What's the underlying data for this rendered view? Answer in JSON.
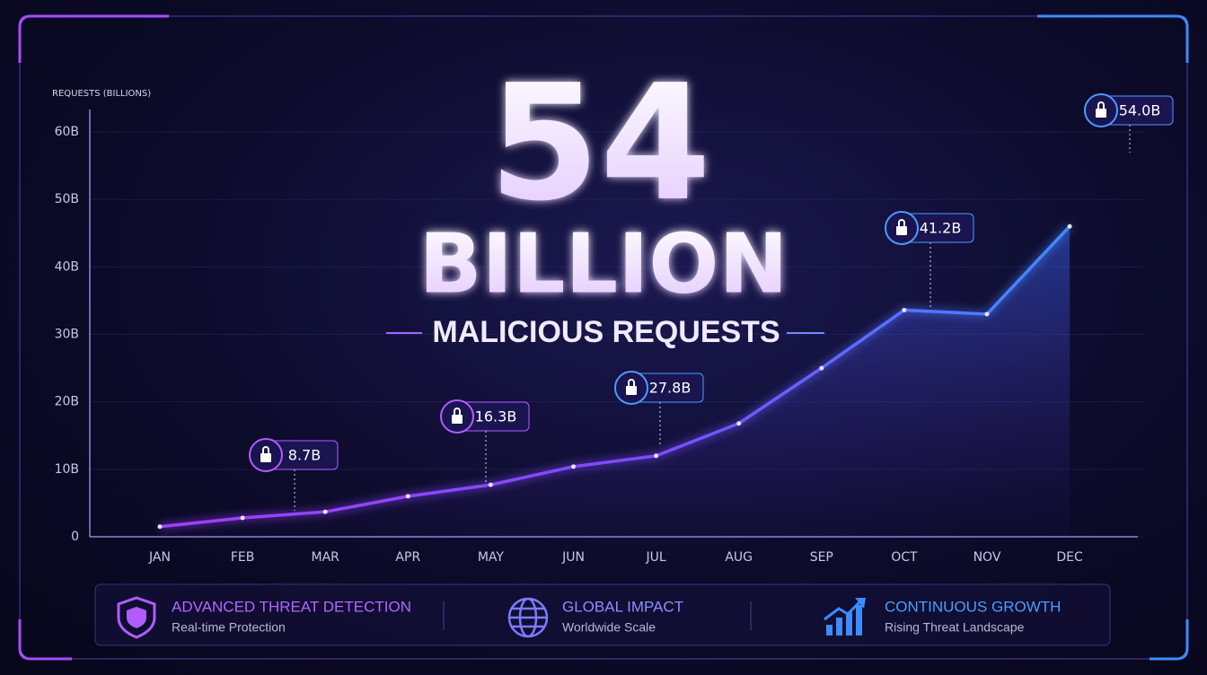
{
  "chart_data": {
    "type": "line",
    "headline_number": "54",
    "headline_unit": "BILLION",
    "subtitle": "MALICIOUS REQUESTS",
    "y_label": "REQUESTS (BILLIONS)",
    "categories": [
      "JAN",
      "FEB",
      "MAR",
      "APR",
      "MAY",
      "JUN",
      "JUL",
      "AUG",
      "SEP",
      "OCT",
      "NOV",
      "DEC"
    ],
    "series": [
      {
        "color": "#a040ff",
        "color_end": "#3d8bff",
        "values": [
          1.5,
          2.8,
          3.7,
          6,
          7.7,
          10.4,
          12,
          16.8,
          25,
          33.6,
          33,
          46
        ]
      }
    ],
    "ylim": [
      0,
      60
    ],
    "yticks": [
      0,
      {
        "value": 10,
        "label": "10B"
      },
      {
        "value": 20,
        "label": "20B"
      },
      {
        "value": 30,
        "label": "30B"
      },
      {
        "value": 40,
        "label": "40B"
      },
      {
        "value": 50,
        "label": "50B"
      },
      {
        "value": 60,
        "label": "60B"
      }
    ],
    "grid": true,
    "annotations": [
      "8.7B",
      "16.3B",
      "27.8B",
      "41.2B",
      "54.0B"
    ]
  },
  "features": [
    {
      "title": "ADVANCED THREAT DETECTION",
      "caption": "Real-time Protection"
    },
    {
      "title": "GLOBAL IMPACT",
      "caption": "Worldwide Scale"
    },
    {
      "title": "CONTINUOUS GROWTH",
      "caption": "Rising Threat Landscape"
    }
  ]
}
